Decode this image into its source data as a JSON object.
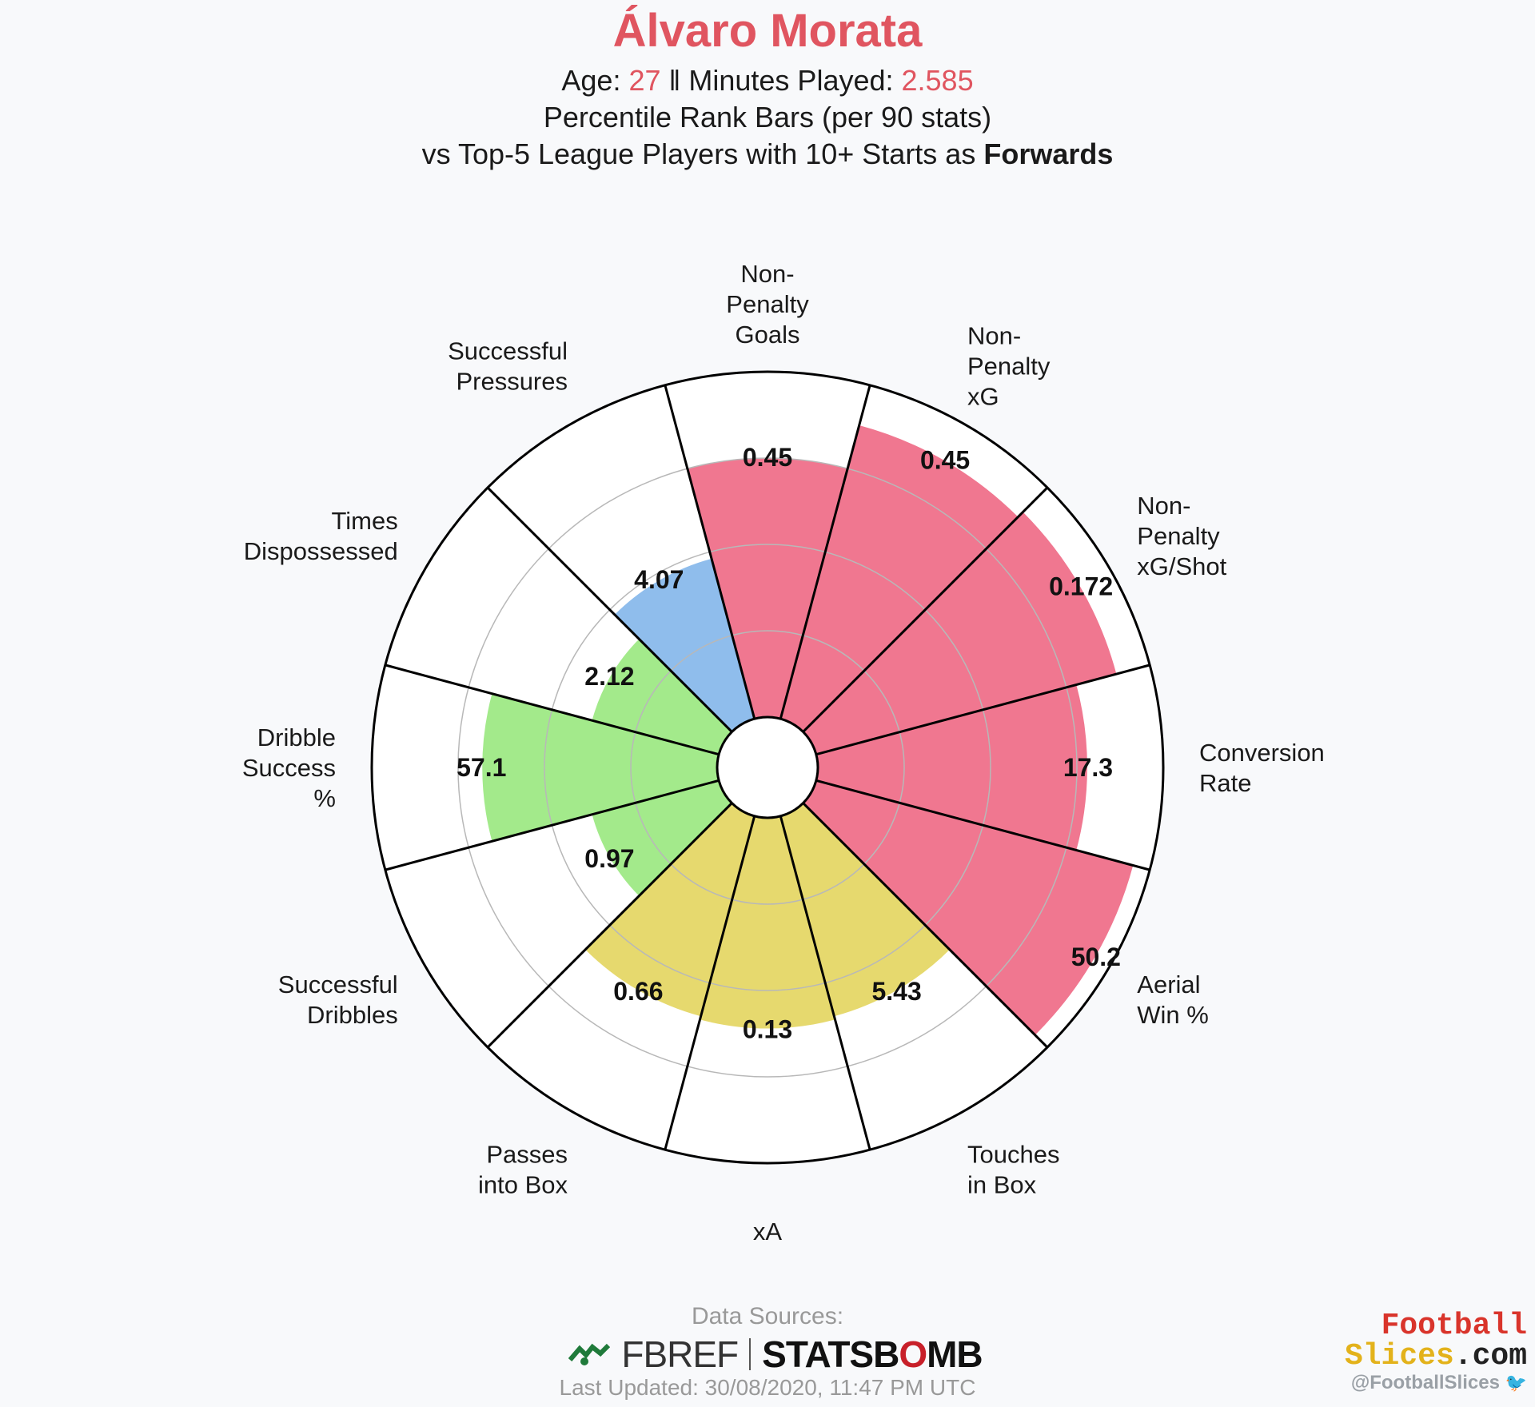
{
  "header": {
    "player_name": "Álvaro Morata",
    "age_label": "Age: ",
    "age_value": "27",
    "separator": " ‖ ",
    "minutes_label": "Minutes Played: ",
    "minutes_value": "2.585",
    "subtitle": "Percentile Rank Bars (per 90 stats)",
    "comparison_prefix": "vs Top-5 League Players with 10+ Starts as ",
    "comparison_position": "Forwards"
  },
  "colors": {
    "accent": "#e05560",
    "attacking": "#f07790",
    "possession": "#e6d96e",
    "dribbling": "#a3ea8b",
    "defending": "#8fbdec"
  },
  "chart_data": {
    "type": "polar-bar",
    "scale": [
      0,
      100
    ],
    "gridlines": [
      25,
      50,
      75
    ],
    "categories": [
      {
        "label": [
          "Non-",
          "Penalty",
          "Goals"
        ],
        "value_label": "0.45",
        "percentile": 75,
        "group": "attacking"
      },
      {
        "label": [
          "Non-",
          "Penalty",
          "xG"
        ],
        "value_label": "0.45",
        "percentile": 88,
        "group": "attacking"
      },
      {
        "label": [
          "Non-",
          "Penalty",
          "xG/Shot"
        ],
        "value_label": "0.172",
        "percentile": 90,
        "group": "attacking"
      },
      {
        "label": [
          "Conversion",
          "Rate"
        ],
        "value_label": "17.3",
        "percentile": 78,
        "group": "attacking"
      },
      {
        "label": [
          "Aerial",
          "Win %"
        ],
        "value_label": "50.2",
        "percentile": 95,
        "group": "attacking"
      },
      {
        "label": [
          "Touches",
          "in Box"
        ],
        "value_label": "5.43",
        "percentile": 60,
        "group": "possession"
      },
      {
        "label": [
          "xA"
        ],
        "value_label": "0.13",
        "percentile": 61,
        "group": "possession"
      },
      {
        "label": [
          "Passes",
          "into Box"
        ],
        "value_label": "0.66",
        "percentile": 60,
        "group": "possession"
      },
      {
        "label": [
          "Successful",
          "Dribbles"
        ],
        "value_label": "0.97",
        "percentile": 38,
        "group": "dribbling"
      },
      {
        "label": [
          "Dribble",
          "Success",
          "%"
        ],
        "value_label": "57.1",
        "percentile": 68,
        "group": "dribbling"
      },
      {
        "label": [
          "Times",
          "Dispossessed"
        ],
        "value_label": "2.12",
        "percentile": 38,
        "group": "dribbling"
      },
      {
        "label": [
          "Successful",
          "Pressures"
        ],
        "value_label": "4.07",
        "percentile": 48,
        "group": "defending"
      }
    ]
  },
  "footer": {
    "sources_label": "Data Sources:",
    "fbref_text": "FBREF",
    "statsbomb_pre": "STATSB",
    "statsbomb_o": "O",
    "statsbomb_post": "MB",
    "last_updated": "Last Updated: 30/08/2020, 11:47 PM UTC",
    "brand_line1": "Football",
    "brand_line2a": "Slices",
    "brand_line2b": ".com",
    "handle": "@FootballSlices",
    "twitter_icon": "twitter-bird-icon"
  }
}
